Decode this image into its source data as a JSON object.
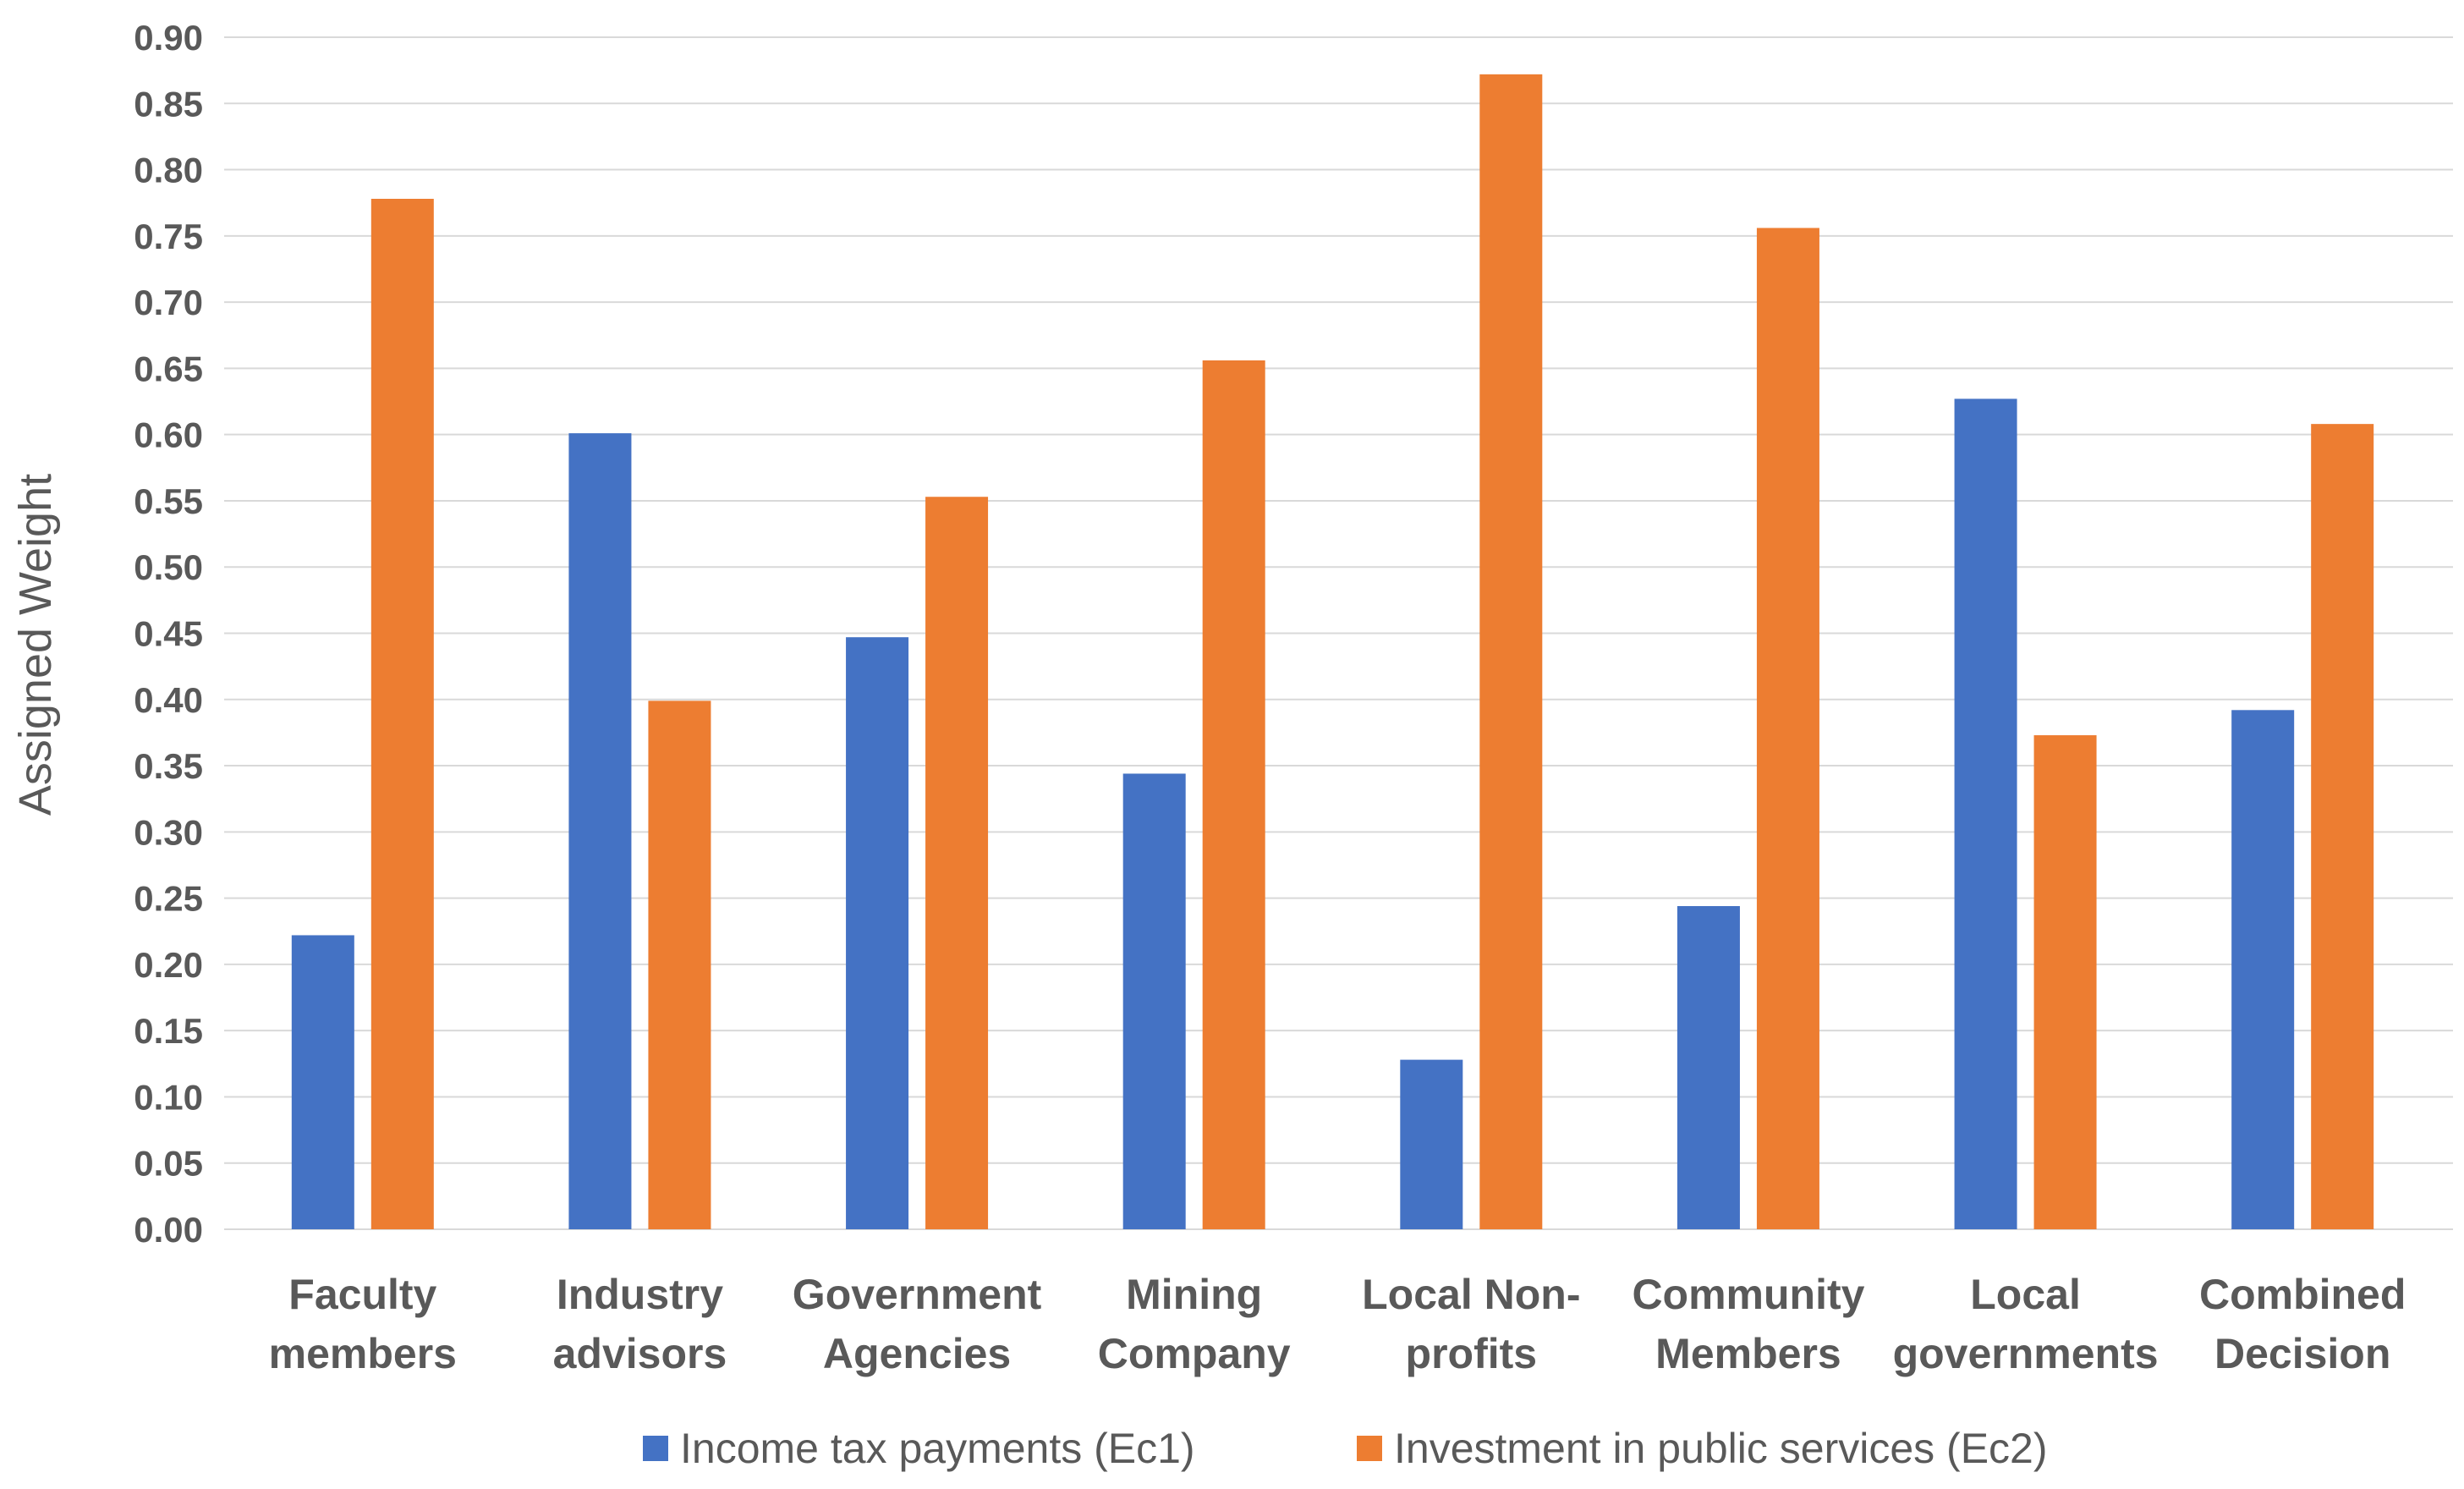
{
  "chart_data": {
    "type": "bar",
    "title": "",
    "xlabel": "",
    "ylabel": "Assigned Weight",
    "ylim": [
      0,
      0.9
    ],
    "yticks": [
      "0.00",
      "0.05",
      "0.10",
      "0.15",
      "0.20",
      "0.25",
      "0.30",
      "0.35",
      "0.40",
      "0.45",
      "0.50",
      "0.55",
      "0.60",
      "0.65",
      "0.70",
      "0.75",
      "0.80",
      "0.85",
      "0.90"
    ],
    "categories": [
      [
        "Faculty",
        "members"
      ],
      [
        "Industry",
        "advisors"
      ],
      [
        "Government",
        "Agencies"
      ],
      [
        "Mining",
        "Company"
      ],
      [
        "Local Non-",
        "profits"
      ],
      [
        "Community",
        "Members"
      ],
      [
        "Local",
        "governments"
      ],
      [
        "Combined",
        "Decision"
      ]
    ],
    "series": [
      {
        "name": "Income tax payments (Ec1)",
        "color": "#4472c4",
        "values": [
          0.222,
          0.601,
          0.447,
          0.344,
          0.128,
          0.244,
          0.627,
          0.392
        ]
      },
      {
        "name": "Investment in public services (Ec2)",
        "color": "#ed7d31",
        "values": [
          0.778,
          0.399,
          0.553,
          0.656,
          0.872,
          0.756,
          0.373,
          0.608
        ]
      }
    ],
    "grid": true,
    "legend_position": "bottom"
  }
}
